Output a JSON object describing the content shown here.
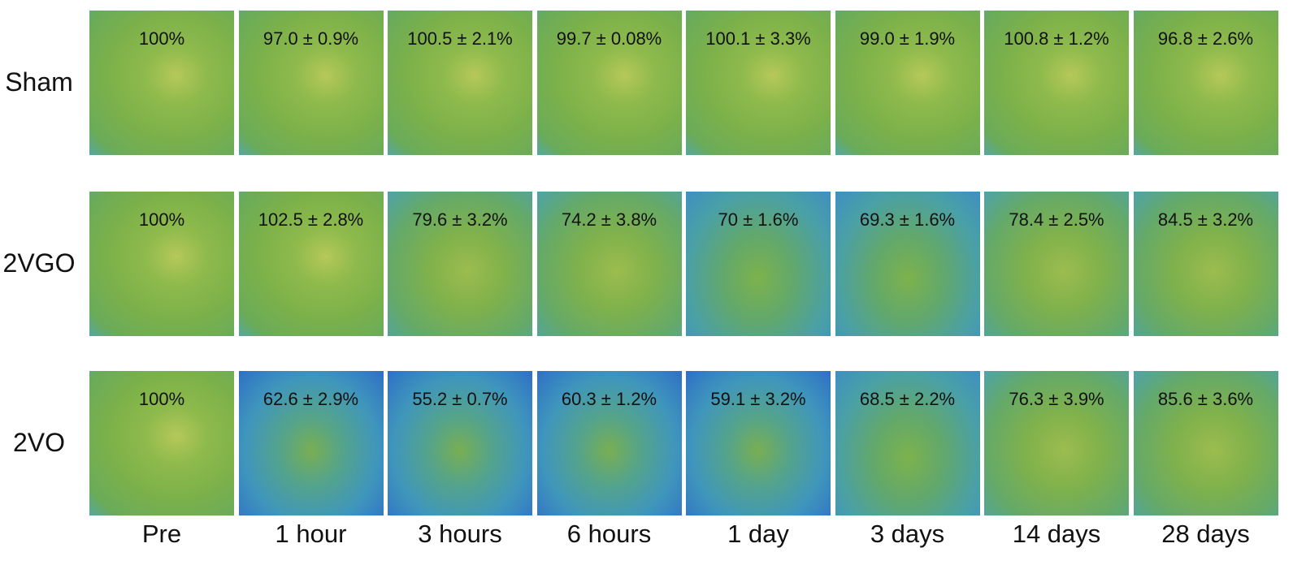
{
  "columns": [
    "Pre",
    "1 hour",
    "3 hours",
    "6 hours",
    "1 day",
    "3 days",
    "14 days",
    "28 days"
  ],
  "rows": [
    {
      "label": "Sham",
      "cells": [
        "100%",
        "97.0 ± 0.9%",
        "100.5 ± 2.1%",
        "99.7 ± 0.08%",
        "100.1 ± 3.3%",
        "99.0 ± 1.9%",
        "100.8 ± 1.2%",
        "96.8 ± 2.6%"
      ]
    },
    {
      "label": "2VGO",
      "cells": [
        "100%",
        "102.5 ± 2.8%",
        "79.6 ± 3.2%",
        "74.2 ± 3.8%",
        "70 ± 1.6%",
        "69.3 ± 1.6%",
        "78.4 ± 2.5%",
        "84.5 ± 3.2%"
      ]
    },
    {
      "label": "2VO",
      "cells": [
        "100%",
        "62.6 ± 2.9%",
        "55.2 ± 0.7%",
        "60.3 ± 1.2%",
        "59.1 ± 3.2%",
        "68.5 ± 2.2%",
        "76.3 ± 3.9%",
        "85.6 ± 3.6%"
      ]
    }
  ]
}
